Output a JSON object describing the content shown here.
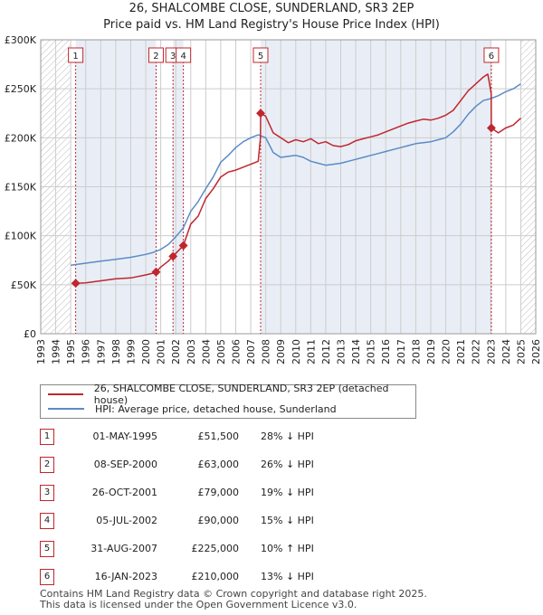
{
  "title": "26, SHALCOMBE CLOSE, SUNDERLAND, SR3 2EP",
  "subtitle": "Price paid vs. HM Land Registry's House Price Index (HPI)",
  "colors": {
    "price": "#c0262d",
    "hpi": "#5b8bc6",
    "grid": "#cccccc",
    "shade": "#e9eef6",
    "hatch": "#bbbbbb"
  },
  "chart_data": {
    "type": "line",
    "xlim": [
      1993,
      2026
    ],
    "ylim": [
      0,
      300000
    ],
    "x_ticks": [
      "1993",
      "1994",
      "1995",
      "1996",
      "1997",
      "1998",
      "1999",
      "2000",
      "2001",
      "2002",
      "2003",
      "2004",
      "2005",
      "2006",
      "2007",
      "2008",
      "2009",
      "2010",
      "2011",
      "2012",
      "2013",
      "2014",
      "2015",
      "2016",
      "2017",
      "2018",
      "2019",
      "2020",
      "2021",
      "2022",
      "2023",
      "2024",
      "2025",
      "2026"
    ],
    "y_ticks": [
      {
        "value": 0,
        "label": "£0"
      },
      {
        "value": 50000,
        "label": "£50K"
      },
      {
        "value": 100000,
        "label": "£100K"
      },
      {
        "value": 150000,
        "label": "£150K"
      },
      {
        "value": 200000,
        "label": "£200K"
      },
      {
        "value": 250000,
        "label": "£250K"
      },
      {
        "value": 300000,
        "label": "£300K"
      }
    ],
    "grid": true,
    "hatched_ranges": [
      [
        1993,
        1995.0
      ],
      [
        2025.0,
        2026
      ]
    ],
    "shaded_bands": [
      [
        1995.33,
        2000.69
      ],
      [
        2001.82,
        2002.51
      ],
      [
        2007.66,
        2023.04
      ]
    ],
    "series": [
      {
        "name": "26, SHALCOMBE CLOSE, SUNDERLAND, SR3 2EP (detached house)",
        "x": [
          1995.33,
          1996,
          1997,
          1998,
          1999,
          2000,
          2000.68,
          2000.69,
          2001,
          2001.5,
          2001.82,
          2002,
          2002.51,
          2003,
          2003.5,
          2004,
          2004.5,
          2005,
          2005.5,
          2006,
          2006.5,
          2007,
          2007.5,
          2007.65,
          2007.66,
          2008,
          2008.5,
          2009,
          2009.5,
          2010,
          2010.5,
          2011,
          2011.5,
          2012,
          2012.5,
          2013,
          2013.5,
          2014,
          2014.5,
          2015,
          2015.5,
          2016,
          2016.5,
          2017,
          2017.5,
          2018,
          2018.5,
          2019,
          2019.5,
          2020,
          2020.5,
          2021,
          2021.5,
          2022,
          2022.5,
          2022.8,
          2023.03,
          2023.04,
          2023.5,
          2024,
          2024.5,
          2025
        ],
        "values": [
          51500,
          52000,
          54000,
          56000,
          57000,
          60000,
          62500,
          63000,
          68000,
          74000,
          79000,
          82000,
          90000,
          112000,
          120000,
          138000,
          148000,
          160000,
          165000,
          167000,
          170000,
          173000,
          176000,
          200000,
          225000,
          222000,
          205000,
          200000,
          195000,
          198000,
          196000,
          199000,
          194000,
          196000,
          192000,
          191000,
          193000,
          197000,
          199000,
          201000,
          203000,
          206000,
          209000,
          212000,
          215000,
          217000,
          219000,
          218000,
          220000,
          223000,
          228000,
          238000,
          248000,
          255000,
          262000,
          265000,
          245000,
          210000,
          205000,
          210000,
          213000,
          220000
        ]
      },
      {
        "name": "HPI: Average price, detached house, Sunderland",
        "x": [
          1995,
          1995.5,
          1996,
          1997,
          1998,
          1999,
          2000,
          2000.5,
          2001,
          2001.5,
          2002,
          2002.5,
          2003,
          2003.5,
          2004,
          2004.5,
          2005,
          2005.5,
          2006,
          2006.5,
          2007,
          2007.5,
          2008,
          2008.5,
          2009,
          2009.5,
          2010,
          2010.5,
          2011,
          2011.5,
          2012,
          2012.5,
          2013,
          2013.5,
          2014,
          2014.5,
          2015,
          2015.5,
          2016,
          2016.5,
          2017,
          2017.5,
          2018,
          2018.5,
          2019,
          2019.5,
          2020,
          2020.5,
          2021,
          2021.5,
          2022,
          2022.5,
          2023,
          2023.5,
          2024,
          2024.5,
          2025
        ],
        "values": [
          70000,
          71000,
          72000,
          74000,
          76000,
          78000,
          81000,
          83000,
          86000,
          91000,
          99000,
          108000,
          125000,
          135000,
          148000,
          160000,
          175000,
          182000,
          190000,
          196000,
          200000,
          203000,
          200000,
          185000,
          180000,
          181000,
          182000,
          180000,
          176000,
          174000,
          172000,
          173000,
          174000,
          176000,
          178000,
          180000,
          182000,
          184000,
          186000,
          188000,
          190000,
          192000,
          194000,
          195000,
          196000,
          198000,
          200000,
          206000,
          214000,
          224000,
          232000,
          238000,
          240000,
          243000,
          247000,
          250000,
          255000
        ]
      }
    ],
    "sales": [
      {
        "n": "1",
        "x": 1995.33,
        "y": 51500
      },
      {
        "n": "2",
        "x": 2000.69,
        "y": 63000
      },
      {
        "n": "3",
        "x": 2001.82,
        "y": 79000
      },
      {
        "n": "4",
        "x": 2002.51,
        "y": 90000
      },
      {
        "n": "5",
        "x": 2007.66,
        "y": 225000
      },
      {
        "n": "6",
        "x": 2023.04,
        "y": 210000
      }
    ]
  },
  "legend": {
    "price_label": "26, SHALCOMBE CLOSE, SUNDERLAND, SR3 2EP (detached house)",
    "hpi_label": "HPI: Average price, detached house, Sunderland"
  },
  "sales_table": [
    {
      "n": "1",
      "date": "01-MAY-1995",
      "price": "£51,500",
      "hpi": "28% ↓ HPI"
    },
    {
      "n": "2",
      "date": "08-SEP-2000",
      "price": "£63,000",
      "hpi": "26% ↓ HPI"
    },
    {
      "n": "3",
      "date": "26-OCT-2001",
      "price": "£79,000",
      "hpi": "19% ↓ HPI"
    },
    {
      "n": "4",
      "date": "05-JUL-2002",
      "price": "£90,000",
      "hpi": "15% ↓ HPI"
    },
    {
      "n": "5",
      "date": "31-AUG-2007",
      "price": "£225,000",
      "hpi": "10% ↑ HPI"
    },
    {
      "n": "6",
      "date": "16-JAN-2023",
      "price": "£210,000",
      "hpi": "13% ↓ HPI"
    }
  ],
  "footer": {
    "line1": "Contains HM Land Registry data © Crown copyright and database right 2025.",
    "line2": "This data is licensed under the Open Government Licence v3.0."
  }
}
